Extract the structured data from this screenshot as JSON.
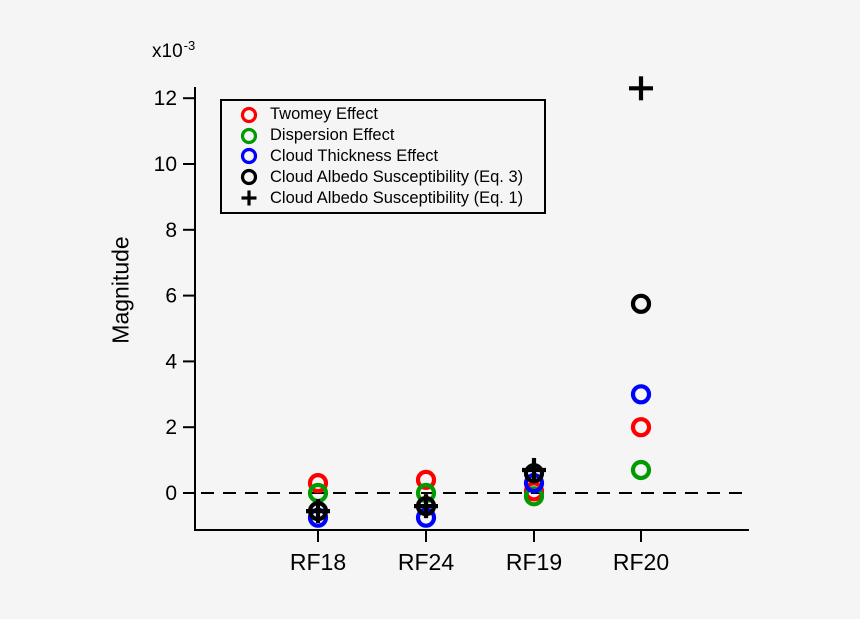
{
  "background": "#f5f5f5",
  "chart_data": {
    "type": "scatter",
    "title": "",
    "xlabel": "",
    "ylabel": "Magnitude",
    "y_multiplier": {
      "base": "x10",
      "exponent": "-3"
    },
    "unit_scale": "1e-3",
    "categories": [
      "RF18",
      "RF24",
      "RF19",
      "RF20"
    ],
    "yticks": [
      0,
      2,
      4,
      6,
      8,
      10,
      12
    ],
    "ylim": [
      -1.1,
      12.35
    ],
    "grid": false,
    "zero_line": "dashed",
    "legend_position": "upper-left-inside",
    "series": [
      {
        "name": "Twomey Effect",
        "marker": "circle",
        "color": "#ff0000",
        "values": [
          0.3,
          0.4,
          0.05,
          2.0
        ]
      },
      {
        "name": "Dispersion Effect",
        "marker": "circle",
        "color": "#009b00",
        "values": [
          0.0,
          0.0,
          -0.1,
          0.7
        ]
      },
      {
        "name": "Cloud Thickness Effect",
        "marker": "circle",
        "color": "#0000ff",
        "values": [
          -0.75,
          -0.75,
          0.3,
          3.0
        ]
      },
      {
        "name": "Cloud Albedo Susceptibility (Eq. 3)",
        "marker": "circle",
        "color": "#000000",
        "values": [
          -0.55,
          -0.4,
          0.6,
          5.75
        ]
      },
      {
        "name": "Cloud Albedo Susceptibility (Eq. 1)",
        "marker": "plus",
        "color": "#000000",
        "values": [
          -0.55,
          -0.4,
          0.7,
          12.3
        ]
      }
    ]
  }
}
